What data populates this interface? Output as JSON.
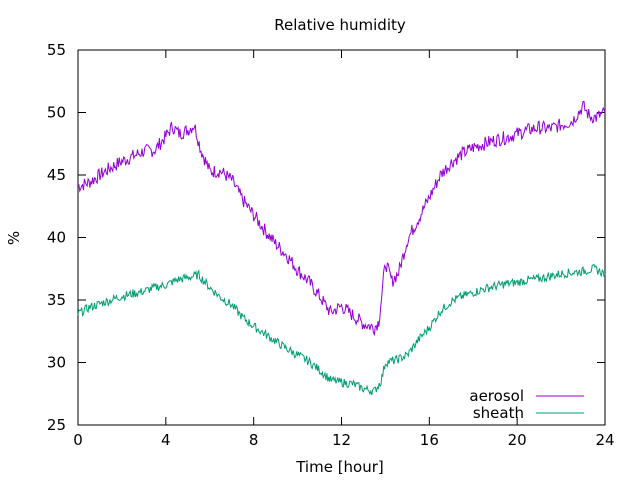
{
  "chart_data": {
    "type": "line",
    "title": "Relative humidity",
    "xlabel": "Time [hour]",
    "ylabel": "%",
    "xlim": [
      0,
      24
    ],
    "ylim": [
      25,
      55
    ],
    "xticks": [
      0,
      4,
      8,
      12,
      16,
      20,
      24
    ],
    "yticks": [
      25,
      30,
      35,
      40,
      45,
      50,
      55
    ],
    "grid": false,
    "legend_position": "bottom-right",
    "series": [
      {
        "name": "aerosol",
        "color": "#9400d3",
        "x": [
          0,
          0.5,
          1,
          1.5,
          2,
          2.5,
          3,
          3.5,
          4,
          4.3,
          4.6,
          5,
          5.3,
          5.6,
          6,
          6.5,
          7,
          7.5,
          8,
          8.5,
          9,
          9.5,
          10,
          10.5,
          11,
          11.5,
          12,
          12.5,
          13,
          13.5,
          13.7,
          14,
          14.3,
          14.6,
          15,
          15.5,
          16,
          16.5,
          17,
          17.5,
          18,
          18.5,
          19,
          19.5,
          20,
          20.5,
          21,
          21.5,
          22,
          22.5,
          23,
          23.3,
          23.6,
          24
        ],
        "y": [
          44.1,
          44.4,
          45,
          45.6,
          46.1,
          46.5,
          46.9,
          47,
          48.1,
          48.9,
          48.3,
          48.6,
          49,
          47,
          45.3,
          45.3,
          44.6,
          43,
          41.8,
          40.6,
          39.5,
          38.6,
          37.4,
          36.5,
          35.3,
          34,
          34.5,
          33.8,
          33.1,
          32.8,
          33.3,
          38,
          36.5,
          37.2,
          39.8,
          41.5,
          43.2,
          45,
          46,
          46.7,
          47.2,
          47.5,
          47.8,
          48,
          48.3,
          48.6,
          48.8,
          48.7,
          49,
          49.3,
          50.5,
          49.7,
          49.6,
          50
        ]
      },
      {
        "name": "sheath",
        "color": "#009e73",
        "x": [
          0,
          0.5,
          1,
          1.5,
          2,
          2.5,
          3,
          3.5,
          4,
          4.5,
          5,
          5.5,
          6,
          6.5,
          7,
          7.5,
          8,
          8.5,
          9,
          9.5,
          10,
          10.5,
          11,
          11.5,
          12,
          12.5,
          13,
          13.5,
          13.8,
          14,
          14.5,
          15,
          15.5,
          16,
          16.5,
          17,
          17.5,
          18,
          18.5,
          19,
          19.5,
          20,
          20.5,
          21,
          21.5,
          22,
          22.5,
          23,
          23.5,
          24
        ],
        "y": [
          33.9,
          34.4,
          34.7,
          35,
          35.3,
          35.5,
          35.7,
          36,
          36.2,
          36.6,
          36.8,
          37,
          36,
          35.2,
          34.6,
          33.6,
          32.9,
          32.3,
          31.7,
          31.1,
          30.6,
          30.1,
          29.4,
          28.6,
          28.4,
          28.3,
          27.9,
          27.7,
          28.5,
          30,
          30.2,
          30.6,
          31.8,
          32.8,
          34.1,
          34.9,
          35.3,
          35.6,
          35.9,
          36.1,
          36.3,
          36.4,
          36.6,
          36.7,
          36.9,
          37.1,
          37.2,
          37.3,
          37.5,
          37.1
        ]
      }
    ]
  }
}
